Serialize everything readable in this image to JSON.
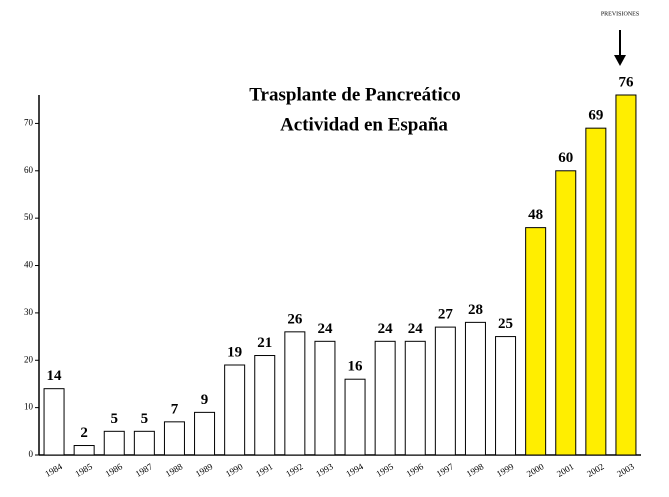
{
  "chart_data": {
    "type": "bar",
    "title": [
      "Trasplante de Pancreático",
      "Actividad en España"
    ],
    "annotation": "PREVISIONES",
    "categories": [
      "1984",
      "1985",
      "1986",
      "1987",
      "1988",
      "1989",
      "1990",
      "1991",
      "1992",
      "1993",
      "1994",
      "1995",
      "1996",
      "1997",
      "1998",
      "1999",
      "2000",
      "2001",
      "2002",
      "2003"
    ],
    "values": [
      14,
      2,
      5,
      5,
      7,
      9,
      19,
      21,
      26,
      24,
      16,
      24,
      24,
      27,
      28,
      25,
      48,
      60,
      69,
      76
    ],
    "colors": [
      "#ffffff",
      "#ffffff",
      "#ffffff",
      "#ffffff",
      "#ffffff",
      "#ffffff",
      "#ffffff",
      "#ffffff",
      "#ffffff",
      "#ffffff",
      "#ffffff",
      "#ffffff",
      "#ffffff",
      "#ffffff",
      "#ffffff",
      "#ffffff",
      "#ffee00",
      "#ffee00",
      "#ffee00",
      "#ffee00"
    ],
    "ylim": [
      0,
      76
    ],
    "yticks": [
      0,
      10,
      20,
      30,
      40,
      50,
      60,
      70
    ],
    "grid": false
  }
}
